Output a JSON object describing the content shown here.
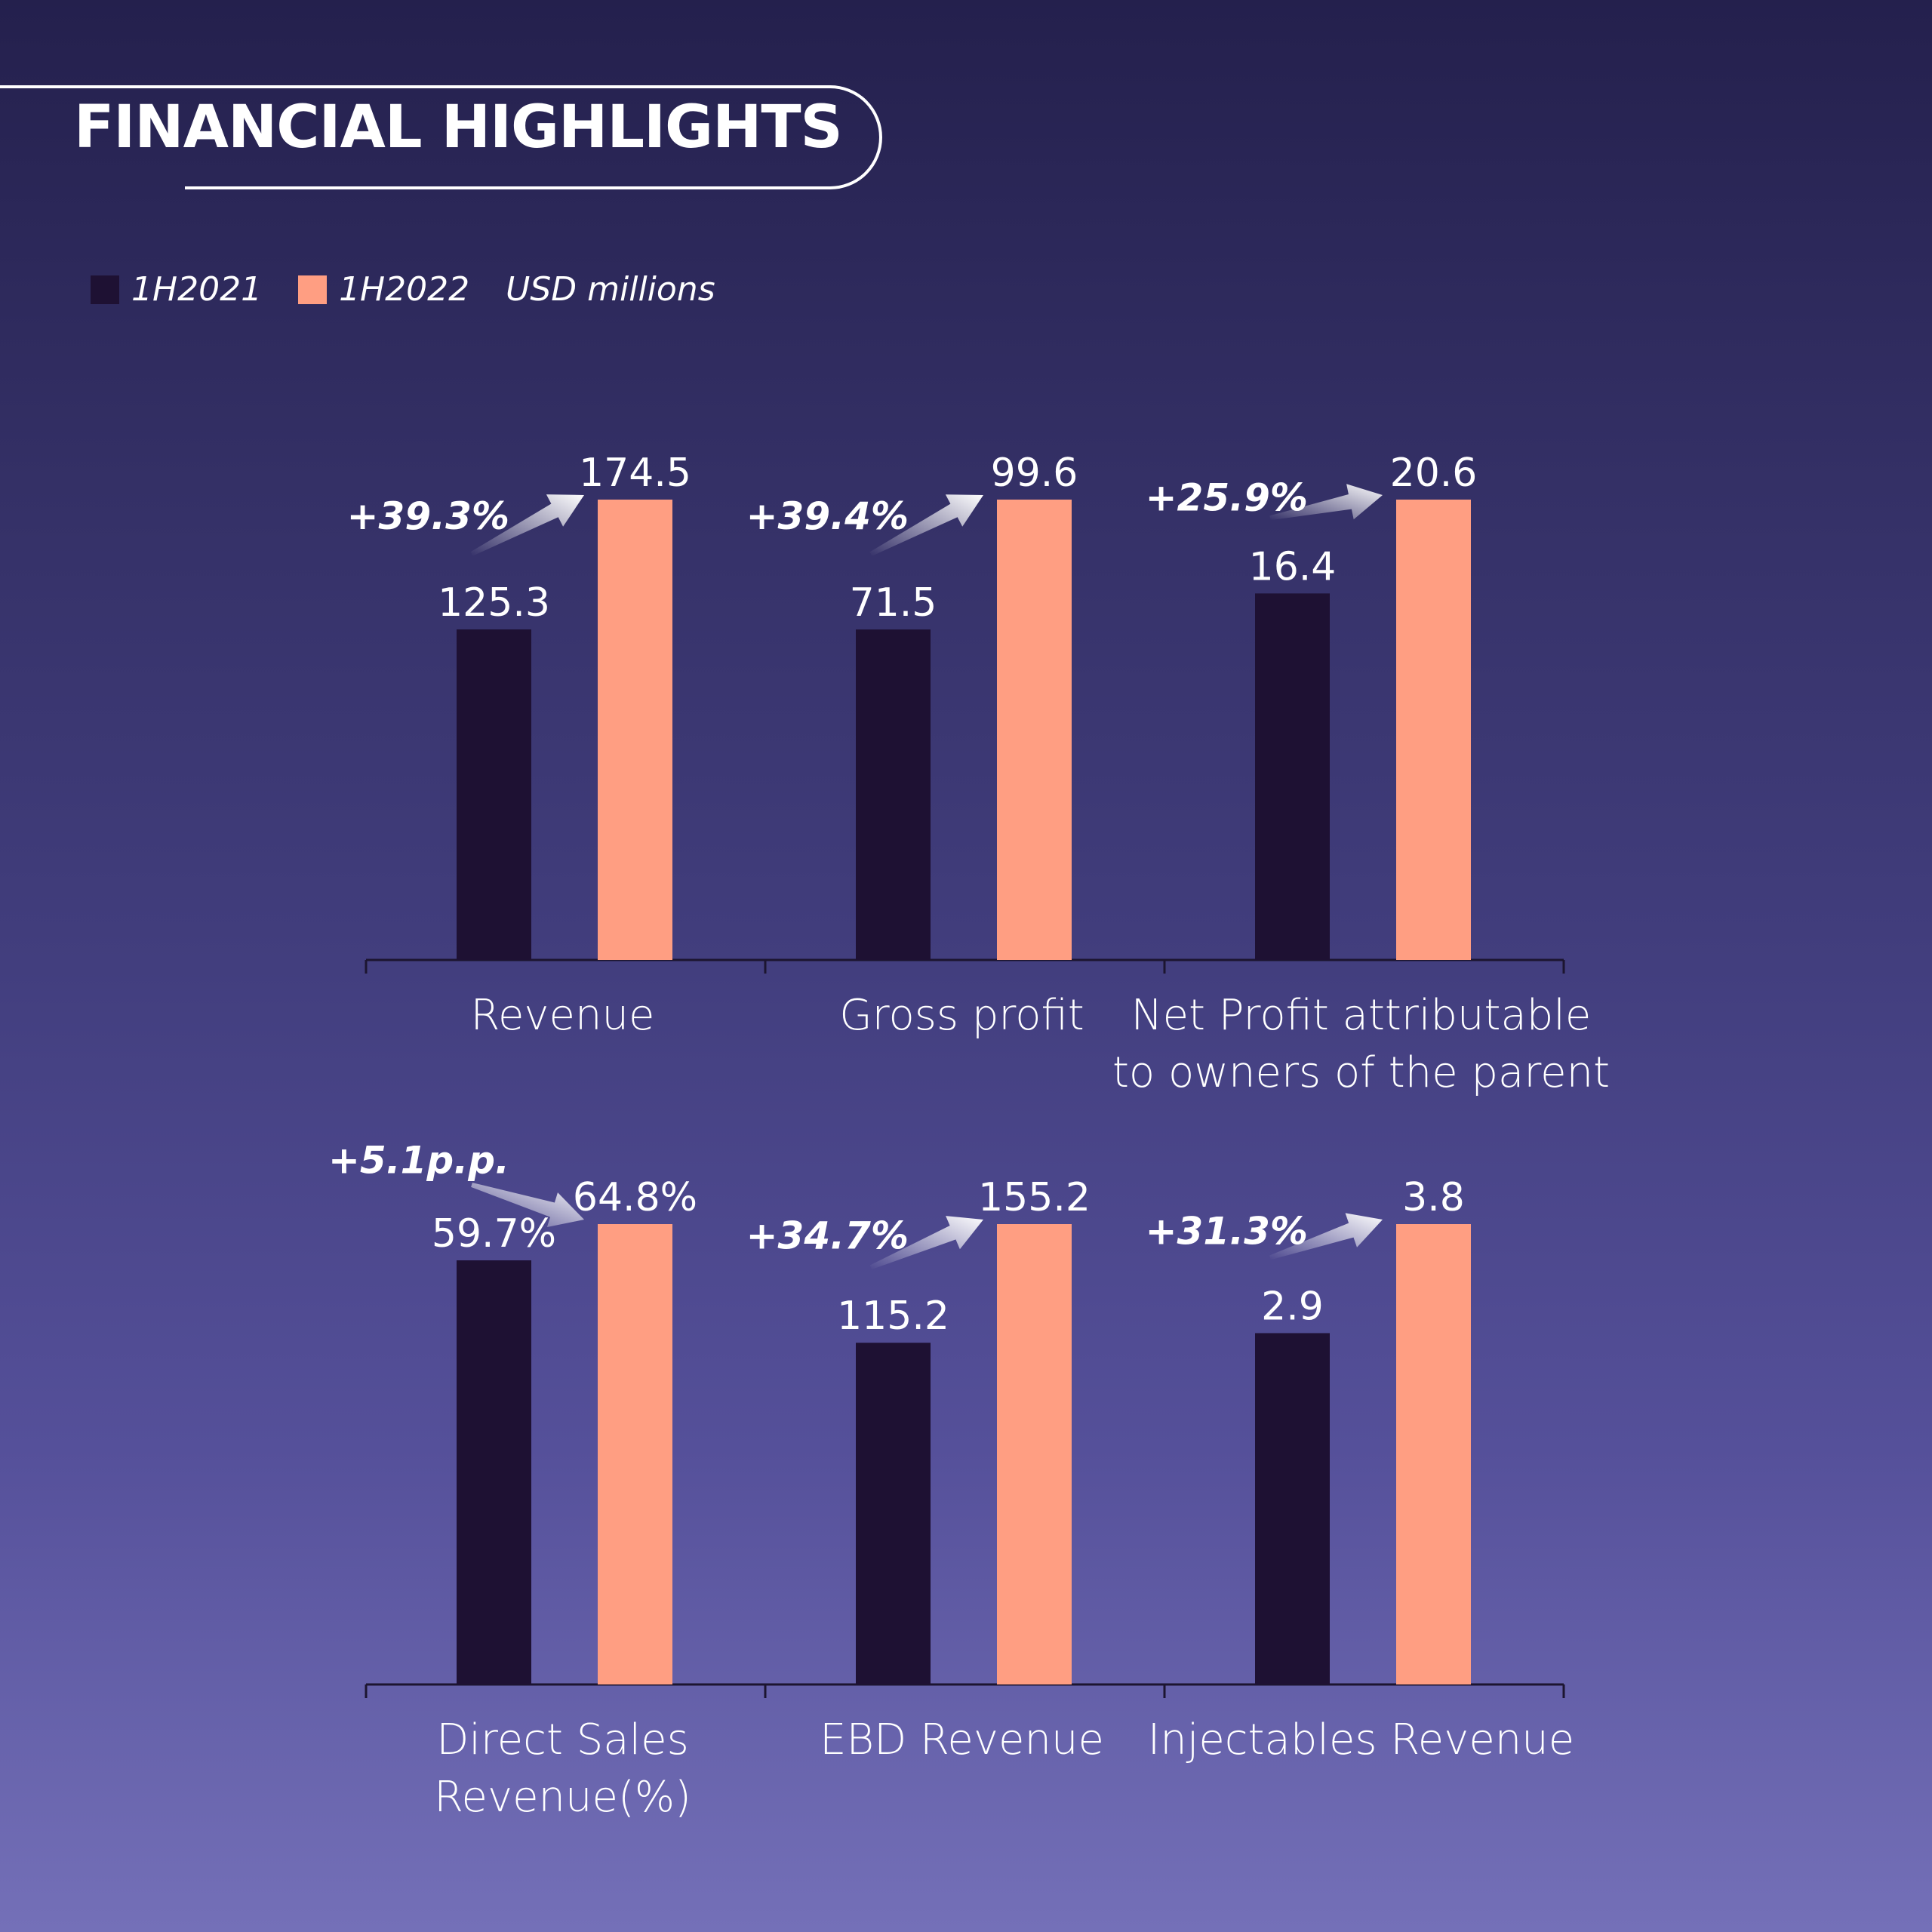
{
  "page_title": "FINANCIAL HIGHLIGHTS",
  "legend": {
    "items": [
      {
        "label": "1H2021",
        "color": "#1e1133"
      },
      {
        "label": "1H2022",
        "color": "#ff9e82"
      }
    ],
    "unit": "USD millions"
  },
  "colors": {
    "1H2021": "#1e1133",
    "1H2022": "#ff9e82",
    "axis": "#1c1530",
    "arrow": "#ffffff"
  },
  "chart_data": [
    {
      "type": "bar",
      "categories": [
        "Revenue",
        "Gross profit",
        "Net Profit attributable to owners of the parent"
      ],
      "category_label_lines": [
        [
          "Revenue"
        ],
        [
          "Gross profit"
        ],
        [
          "Net Profit attributable",
          "to owners of the parent"
        ]
      ],
      "series": [
        {
          "name": "1H2021",
          "values": [
            125.3,
            71.5,
            16.4
          ],
          "labels": [
            "125.3",
            "71.5",
            "16.4"
          ]
        },
        {
          "name": "1H2022",
          "values": [
            174.5,
            99.6,
            20.6
          ],
          "labels": [
            "174.5",
            "99.6",
            "20.6"
          ]
        }
      ],
      "changes": [
        "+39.3%",
        "+39.4%",
        "+25.9%"
      ],
      "unit": "USD millions"
    },
    {
      "type": "bar",
      "categories": [
        "Direct Sales Revenue(%)",
        "EBD Revenue",
        "Injectables Revenue"
      ],
      "category_label_lines": [
        [
          "Direct Sales",
          "Revenue(%)"
        ],
        [
          "EBD Revenue"
        ],
        [
          "Injectables Revenue"
        ]
      ],
      "series": [
        {
          "name": "1H2021",
          "values": [
            59.7,
            115.2,
            2.9
          ],
          "labels": [
            "59.7%",
            "115.2",
            "2.9"
          ]
        },
        {
          "name": "1H2022",
          "values": [
            64.8,
            155.2,
            3.8
          ],
          "labels": [
            "64.8%",
            "155.2",
            "3.8"
          ]
        }
      ],
      "changes": [
        "+5.1p.p.",
        "+34.7%",
        "+31.3%"
      ],
      "unit": "USD millions"
    }
  ]
}
